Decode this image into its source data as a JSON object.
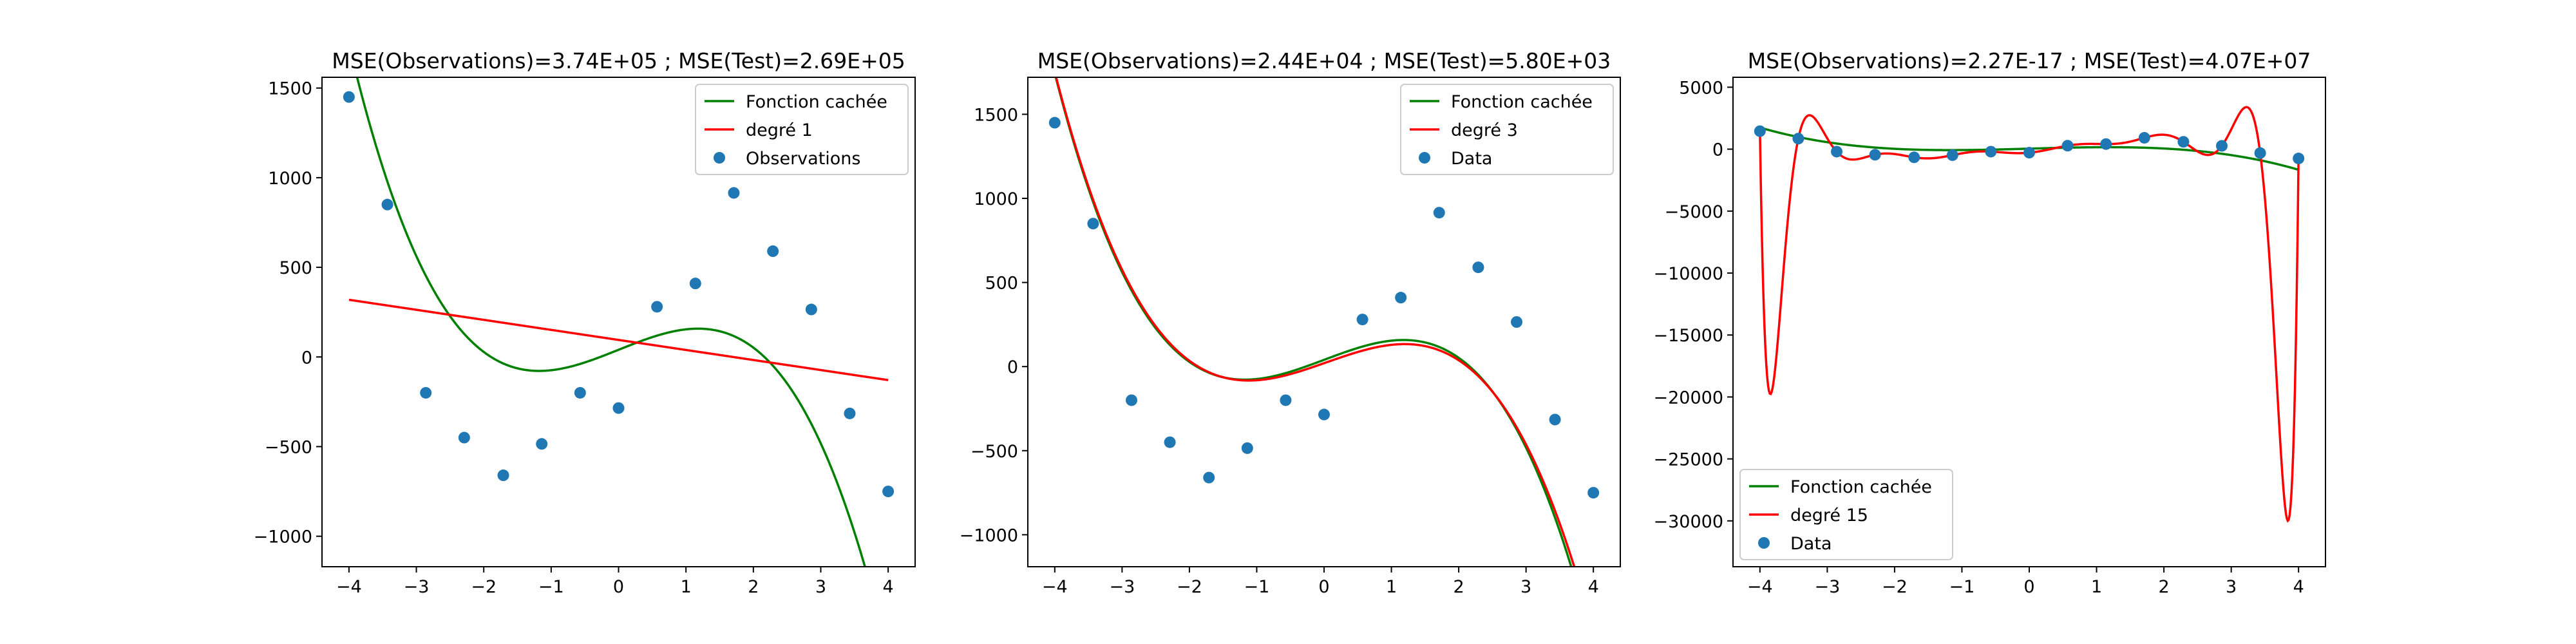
{
  "chart_data": [
    {
      "type": "line",
      "title": "MSE(Observations)=3.74E+05 ; MSE(Test)=2.69E+05",
      "xlabel": "",
      "ylabel": "",
      "xlim": [
        -4.4,
        4.4
      ],
      "ylim": [
        -1170,
        1560
      ],
      "xticks": [
        -4,
        -3,
        -2,
        -1,
        0,
        1,
        2,
        3,
        4
      ],
      "xtick_labels": [
        "−4",
        "−3",
        "−2",
        "−1",
        "0",
        "1",
        "2",
        "3",
        "4"
      ],
      "yticks": [
        -1000,
        -500,
        0,
        500,
        1000,
        1500
      ],
      "ytick_labels": [
        "−1000",
        "−500",
        "0",
        "500",
        "1000",
        "1500"
      ],
      "legend_position": "top-right",
      "series": [
        {
          "name": "Fonction cachée",
          "kind": "line",
          "color": "#008000",
          "poly": [
            40,
            150,
            0,
            -36
          ]
        },
        {
          "name": "degré 1",
          "kind": "line",
          "color": "#ff0000",
          "poly": [
            95,
            -56
          ]
        },
        {
          "name": "Observations",
          "kind": "scatter",
          "color": "#1f77b4",
          "x": [
            -4,
            -3.43,
            -2.86,
            -2.29,
            -1.71,
            -1.14,
            -0.57,
            0,
            0.57,
            1.14,
            1.71,
            2.29,
            2.86,
            3.43,
            4
          ],
          "y": [
            1450,
            850,
            -200,
            -450,
            -660,
            -485,
            -200,
            -285,
            280,
            410,
            915,
            590,
            265,
            -315,
            -750
          ]
        }
      ]
    },
    {
      "type": "line",
      "title": "MSE(Observations)=2.44E+04 ; MSE(Test)=5.80E+03",
      "xlabel": "",
      "ylabel": "",
      "xlim": [
        -4.4,
        4.4
      ],
      "ylim": [
        -1190,
        1720
      ],
      "xticks": [
        -4,
        -3,
        -2,
        -1,
        0,
        1,
        2,
        3,
        4
      ],
      "xtick_labels": [
        "−4",
        "−3",
        "−2",
        "−1",
        "0",
        "1",
        "2",
        "3",
        "4"
      ],
      "yticks": [
        -1000,
        -500,
        0,
        500,
        1000,
        1500
      ],
      "ytick_labels": [
        "−1000",
        "−500",
        "0",
        "500",
        "1000",
        "1500"
      ],
      "legend_position": "top-right",
      "series": [
        {
          "name": "Fonction cachée",
          "kind": "line",
          "color": "#008000",
          "poly": [
            40,
            150,
            0,
            -36
          ]
        },
        {
          "name": "degré 3",
          "kind": "line",
          "color": "#ff0000",
          "poly": [
            20,
            140,
            4,
            -34.8
          ]
        },
        {
          "name": "Data",
          "kind": "scatter",
          "color": "#1f77b4",
          "x": [
            -4,
            -3.43,
            -2.86,
            -2.29,
            -1.71,
            -1.14,
            -0.57,
            0,
            0.57,
            1.14,
            1.71,
            2.29,
            2.86,
            3.43,
            4
          ],
          "y": [
            1450,
            850,
            -200,
            -450,
            -660,
            -485,
            -200,
            -285,
            280,
            410,
            915,
            590,
            265,
            -315,
            -750
          ]
        }
      ]
    },
    {
      "type": "line",
      "title": "MSE(Observations)=2.27E-17 ; MSE(Test)=4.07E+07",
      "xlabel": "",
      "ylabel": "",
      "xlim": [
        -4.4,
        4.4
      ],
      "ylim": [
        -33700,
        5800
      ],
      "xticks": [
        -4,
        -3,
        -2,
        -1,
        0,
        1,
        2,
        3,
        4
      ],
      "xtick_labels": [
        "−4",
        "−3",
        "−2",
        "−1",
        "0",
        "1",
        "2",
        "3",
        "4"
      ],
      "yticks": [
        -30000,
        -25000,
        -20000,
        -15000,
        -10000,
        -5000,
        0,
        5000
      ],
      "ytick_labels": [
        "−30000",
        "−25000",
        "−20000",
        "−15000",
        "−10000",
        "−5000",
        "0",
        "5000"
      ],
      "legend_position": "bottom-left",
      "series": [
        {
          "name": "Fonction cachée",
          "kind": "line",
          "color": "#008000",
          "poly": [
            40,
            150,
            0,
            -36
          ]
        },
        {
          "name": "degré 15",
          "kind": "interpolation",
          "color": "#ff0000",
          "x": [
            -4,
            -3.43,
            -2.86,
            -2.29,
            -1.71,
            -1.14,
            -0.57,
            0,
            0.57,
            1.14,
            1.71,
            2.29,
            2.86,
            3.43,
            4
          ],
          "y": [
            1450,
            850,
            -200,
            -450,
            -660,
            -485,
            -200,
            -285,
            280,
            410,
            915,
            590,
            265,
            -315,
            -750
          ]
        },
        {
          "name": "Data",
          "kind": "scatter",
          "color": "#1f77b4",
          "x": [
            -4,
            -3.43,
            -2.86,
            -2.29,
            -1.71,
            -1.14,
            -0.57,
            0,
            0.57,
            1.14,
            1.71,
            2.29,
            2.86,
            3.43,
            4
          ],
          "y": [
            1450,
            850,
            -200,
            -450,
            -660,
            -485,
            -200,
            -285,
            280,
            410,
            915,
            590,
            265,
            -315,
            -750
          ]
        }
      ]
    }
  ]
}
